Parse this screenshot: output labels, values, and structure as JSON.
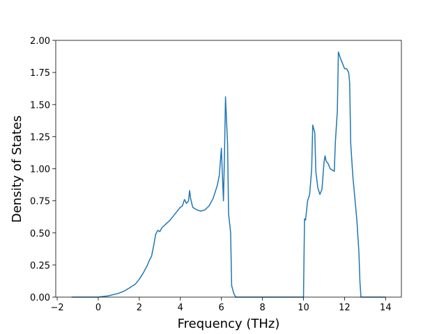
{
  "chart_data": {
    "type": "line",
    "xlabel": "Frequency (THz)",
    "ylabel": "Density of States",
    "xlim": [
      -2.07,
      14.77
    ],
    "ylim": [
      0,
      2
    ],
    "xticks": [
      {
        "value": -2,
        "label": "−2"
      },
      0,
      2,
      4,
      6,
      8,
      10,
      12,
      14
    ],
    "yticks": [
      {
        "value": 0,
        "label": "0.00"
      },
      {
        "value": 0.25,
        "label": "0.25"
      },
      {
        "value": 0.5,
        "label": "0.50"
      },
      {
        "value": 0.75,
        "label": "0.75"
      },
      {
        "value": 1,
        "label": "1.00"
      },
      {
        "value": 1.25,
        "label": "1.25"
      },
      {
        "value": 1.5,
        "label": "1.50"
      },
      {
        "value": 1.75,
        "label": "1.75"
      },
      {
        "value": 2,
        "label": "2.00"
      }
    ],
    "grid": false,
    "series": [
      {
        "color": "#1f77b4",
        "x": [
          -1.3,
          0,
          0.5,
          1,
          1.3,
          1.5,
          1.8,
          2.0,
          2.2,
          2.4,
          2.5,
          2.6,
          2.7,
          2.8,
          2.9,
          3.0,
          3.1,
          3.3,
          3.5,
          3.7,
          3.9,
          4.0,
          4.1,
          4.2,
          4.3,
          4.4,
          4.45,
          4.5,
          4.6,
          4.8,
          5.0,
          5.2,
          5.4,
          5.6,
          5.8,
          5.9,
          6.0,
          6.05,
          6.1,
          6.15,
          6.2,
          6.3,
          6.35,
          6.45,
          6.5,
          6.6,
          6.7,
          10.0,
          10.05,
          10.1,
          10.2,
          10.3,
          10.4,
          10.45,
          10.55,
          10.6,
          10.7,
          10.8,
          10.9,
          11.0,
          11.05,
          11.1,
          11.2,
          11.3,
          11.5,
          11.55,
          11.65,
          11.7,
          11.8,
          11.9,
          12.0,
          12.1,
          12.2,
          12.25,
          12.3,
          12.4,
          12.6,
          12.7,
          12.75,
          12.8,
          14.0
        ],
        "values": [
          0,
          0,
          0.01,
          0.03,
          0.05,
          0.07,
          0.1,
          0.14,
          0.19,
          0.25,
          0.29,
          0.32,
          0.4,
          0.49,
          0.52,
          0.51,
          0.54,
          0.57,
          0.6,
          0.64,
          0.68,
          0.7,
          0.71,
          0.76,
          0.73,
          0.75,
          0.83,
          0.77,
          0.7,
          0.68,
          0.67,
          0.68,
          0.71,
          0.77,
          0.87,
          0.95,
          1.16,
          0.95,
          0.75,
          1.1,
          1.56,
          1.2,
          0.65,
          0.5,
          0.09,
          0.03,
          0,
          0,
          0.61,
          0.6,
          0.75,
          0.8,
          1.0,
          1.34,
          1.28,
          0.98,
          0.85,
          0.8,
          0.84,
          1.05,
          1.1,
          1.06,
          1.04,
          1.0,
          0.98,
          1.2,
          1.45,
          1.91,
          1.86,
          1.82,
          1.78,
          1.78,
          1.75,
          1.67,
          1.2,
          0.95,
          0.6,
          0.35,
          0.12,
          0,
          0
        ]
      }
    ]
  }
}
